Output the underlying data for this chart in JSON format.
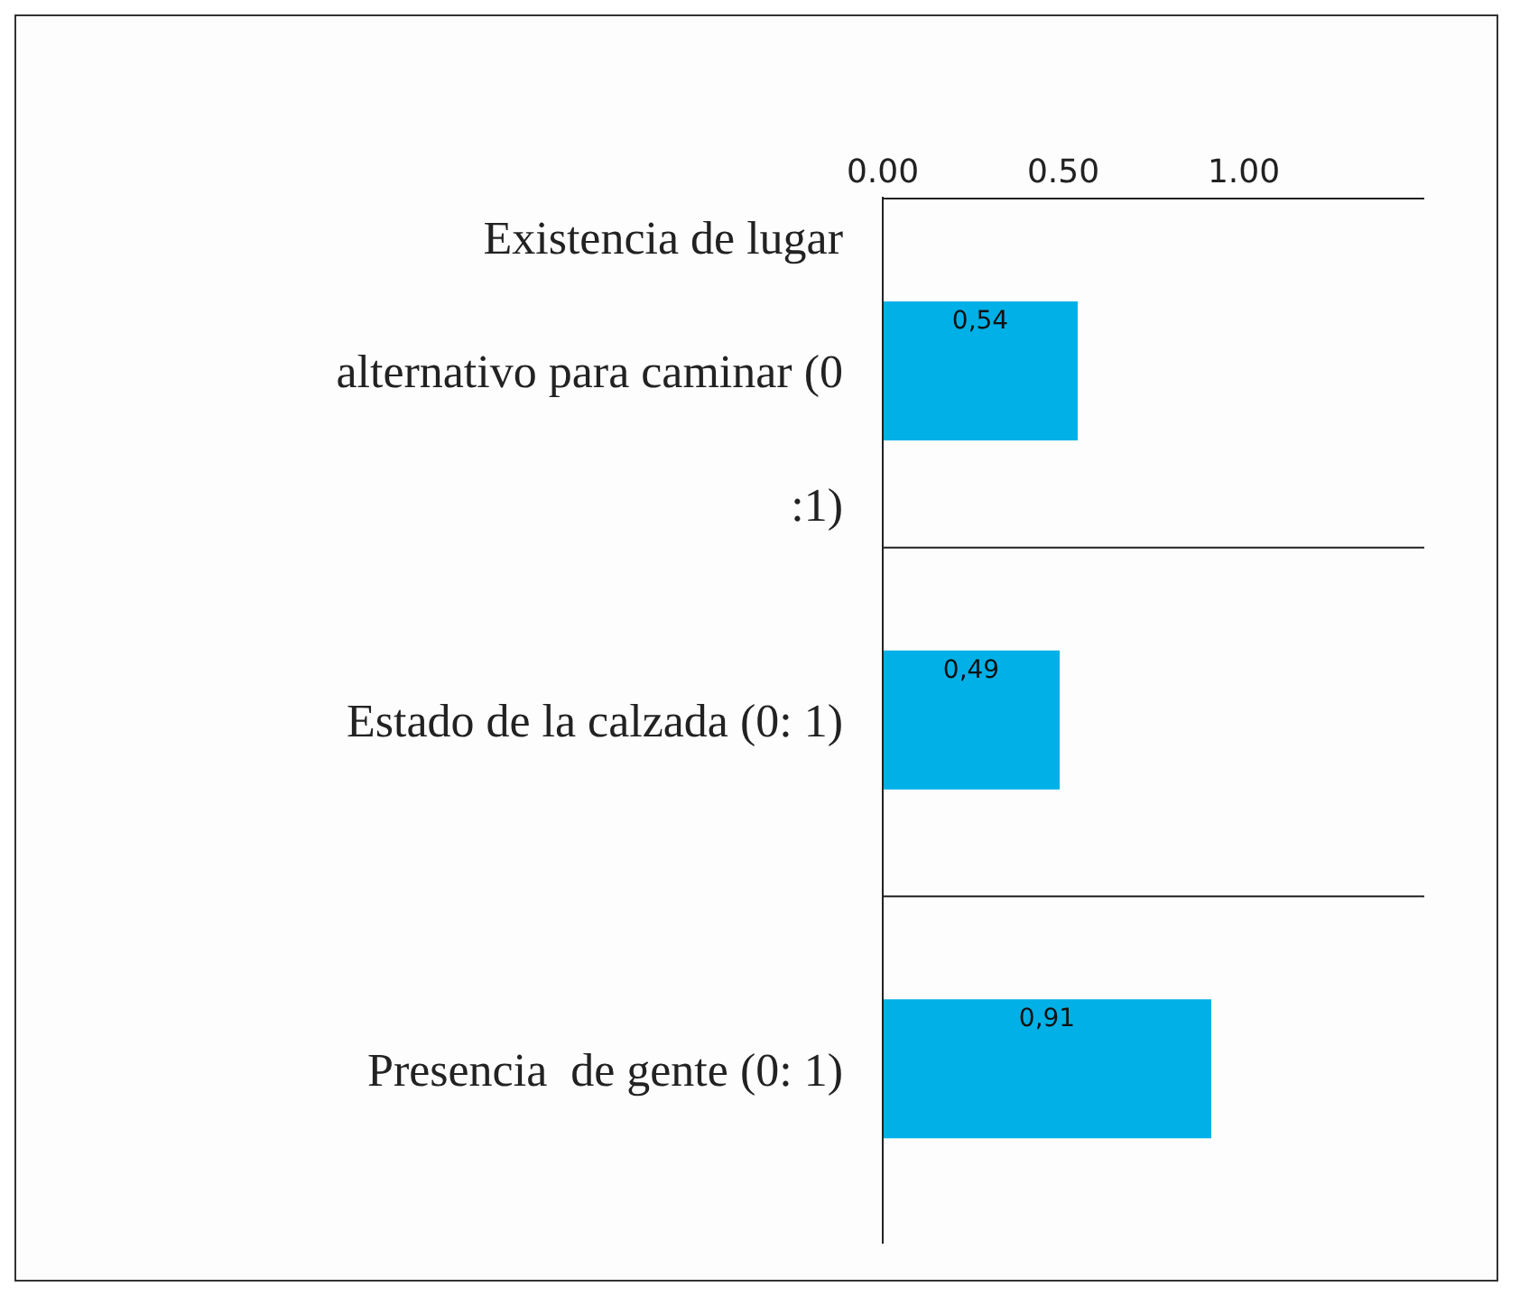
{
  "chart_data": {
    "type": "bar",
    "orientation": "horizontal",
    "categories": [
      "Existencia de lugar alternativo para caminar (0 :1)",
      "Estado de la calzada (0: 1)",
      "Presencia  de gente (0: 1)"
    ],
    "values": [
      0.54,
      0.49,
      0.91
    ],
    "value_labels": [
      "0,54",
      "0,49",
      "0,91"
    ],
    "color": "#00b0e6",
    "xlim": [
      0,
      1.5
    ],
    "xticks": [
      {
        "value": 0,
        "label": "0.00"
      },
      {
        "value": 0.5,
        "label": "0.50"
      },
      {
        "value": 1,
        "label": "1.00"
      }
    ],
    "grid": "y"
  }
}
